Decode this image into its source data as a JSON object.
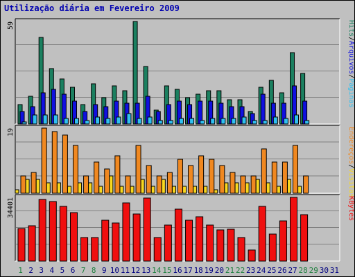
{
  "title": "Utilização diária em Fevereiro 2009",
  "colors": {
    "hits": "#1b8060",
    "files": "#1010e0",
    "pages": "#30c0f0",
    "visits": "#f8d820",
    "sites": "#f08820",
    "kbytes": "#f00f0f",
    "weekend": "#208040",
    "weekday": "#000080",
    "grid": "#808080",
    "panel": "#c0c0c0"
  },
  "chart_data": {
    "type": "bar",
    "title": "Utilização diária em Fevereiro 2009",
    "categories": [
      "1",
      "2",
      "3",
      "4",
      "5",
      "6",
      "7",
      "8",
      "9",
      "10",
      "11",
      "12",
      "13",
      "14",
      "15",
      "16",
      "17",
      "18",
      "19",
      "20",
      "21",
      "22",
      "23",
      "24",
      "25",
      "26",
      "27",
      "28",
      "29",
      "30",
      "31"
    ],
    "weekend_days": [
      "1",
      "7",
      "8",
      "14",
      "15",
      "21",
      "22",
      "28",
      "29"
    ],
    "days_with_data": 28,
    "panels": [
      {
        "ymax_label": "59",
        "legend": [
          "Hits",
          "/",
          "Arquivos",
          "/",
          "Páginas"
        ],
        "legend_colors": [
          "hits",
          "black",
          "files",
          "black",
          "pages"
        ],
        "series": [
          {
            "name": "Hits",
            "color_key": "hits",
            "values": [
              11,
              16,
              50,
              32,
              26,
              21,
              11,
              23,
              15,
              22,
              19,
              59,
              33,
              8,
              22,
              20,
              15,
              17,
              19,
              19,
              14,
              14,
              7,
              21,
              25,
              18,
              41,
              29
            ]
          },
          {
            "name": "Arquivos",
            "color_key": "files",
            "values": [
              7,
              10,
              18,
              20,
              17,
              13,
              7,
              11,
              10,
              13,
              12,
              12,
              16,
              7,
              11,
              13,
              11,
              13,
              13,
              12,
              10,
              10,
              6,
              17,
              12,
              12,
              22,
              13
            ]
          },
          {
            "name": "Páginas",
            "color_key": "pages",
            "values": [
              1,
              5,
              5,
              5,
              3,
              3,
              2,
              4,
              3,
              4,
              6,
              3,
              4,
              2,
              2,
              3,
              3,
              2,
              3,
              3,
              3,
              4,
              2,
              2,
              4,
              3,
              5,
              2
            ]
          }
        ]
      },
      {
        "ymax_label": "19",
        "legend": [
          "Endereços",
          "/",
          "Visitas"
        ],
        "legend_colors": [
          "sites",
          "black",
          "visits"
        ],
        "series": [
          {
            "name": "Endereços",
            "color_key": "sites",
            "values": [
              5,
              6,
              19,
              18,
              17,
              14,
              5,
              9,
              7,
              11,
              5,
              14,
              8,
              5,
              6,
              10,
              8,
              11,
              10,
              8,
              6,
              5,
              5,
              13,
              9,
              9,
              14,
              5
            ]
          },
          {
            "name": "Visitas",
            "color_key": "visits",
            "values": [
              1,
              4,
              4,
              3,
              3,
              2,
              3,
              3,
              2,
              5,
              2,
              2,
              4,
              2,
              4,
              2,
              2,
              2,
              2,
              1,
              3,
              3,
              3,
              4,
              3,
              2,
              4,
              2
            ]
          }
        ]
      },
      {
        "ymax_label": "34401",
        "legend": [
          "KBytes"
        ],
        "legend_colors": [
          "kbytes"
        ],
        "series": [
          {
            "name": "KBytes",
            "color_key": "kbytes",
            "values": [
              17500,
              19000,
              33400,
              32300,
              29500,
              26000,
              12700,
              12700,
              22000,
              20500,
              31500,
              25600,
              34000,
              12700,
              19400,
              28200,
              22000,
              23900,
              19500,
              16700,
              17300,
              12700,
              6000,
              29600,
              14700,
              21700,
              34400,
              25200
            ]
          }
        ]
      }
    ]
  }
}
